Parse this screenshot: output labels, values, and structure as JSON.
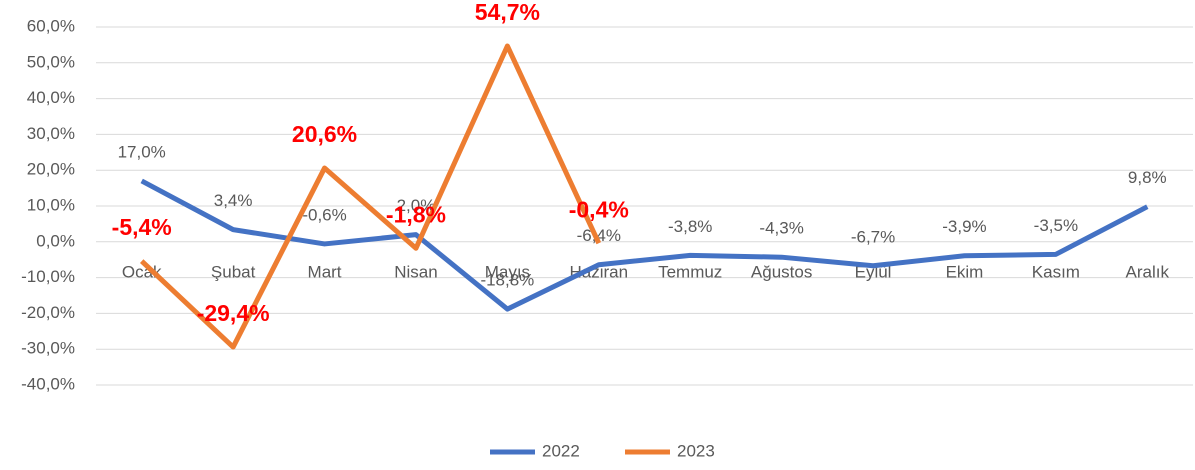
{
  "chart_data": {
    "type": "line",
    "categories": [
      "Ocak",
      "Şubat",
      "Mart",
      "Nisan",
      "Mayıs",
      "Haziran",
      "Temmuz",
      "Ağustos",
      "Eylül",
      "Ekim",
      "Kasım",
      "Aralık"
    ],
    "series": [
      {
        "name": "2022",
        "color": "#4472c4",
        "values": [
          17.0,
          3.4,
          -0.6,
          2.0,
          -18.8,
          -6.4,
          -3.8,
          -4.3,
          -6.7,
          -3.9,
          -3.5,
          9.8
        ],
        "value_labels": [
          "17,0%",
          "3,4%",
          "-0,6%",
          "2,0%",
          "-18,8%",
          "-6,4%",
          "-3,8%",
          "-4,3%",
          "-6,7%",
          "-3,9%",
          "-3,5%",
          "9,8%"
        ]
      },
      {
        "name": "2023",
        "color": "#ed7d31",
        "values": [
          -5.4,
          -29.4,
          20.6,
          -1.8,
          54.7,
          -0.4,
          null,
          null,
          null,
          null,
          null,
          null
        ],
        "value_labels": [
          "-5,4%",
          "-29,4%",
          "20,6%",
          "-1,8%",
          "54,7%",
          "-0,4%",
          null,
          null,
          null,
          null,
          null,
          null
        ]
      }
    ],
    "ylim": [
      -40,
      60
    ],
    "yticks": [
      {
        "value": -40,
        "label": "-40,0%"
      },
      {
        "value": -30,
        "label": "-30,0%"
      },
      {
        "value": -20,
        "label": "-20,0%"
      },
      {
        "value": -10,
        "label": "-10,0%"
      },
      {
        "value": 0,
        "label": "0,0%"
      },
      {
        "value": 10,
        "label": "10,0%"
      },
      {
        "value": 20,
        "label": "20,0%"
      },
      {
        "value": 30,
        "label": "30,0%"
      },
      {
        "value": 40,
        "label": "40,0%"
      },
      {
        "value": 50,
        "label": "50,0%"
      },
      {
        "value": 60,
        "label": "60,0%"
      }
    ],
    "grid": true,
    "legend": "bottom"
  }
}
